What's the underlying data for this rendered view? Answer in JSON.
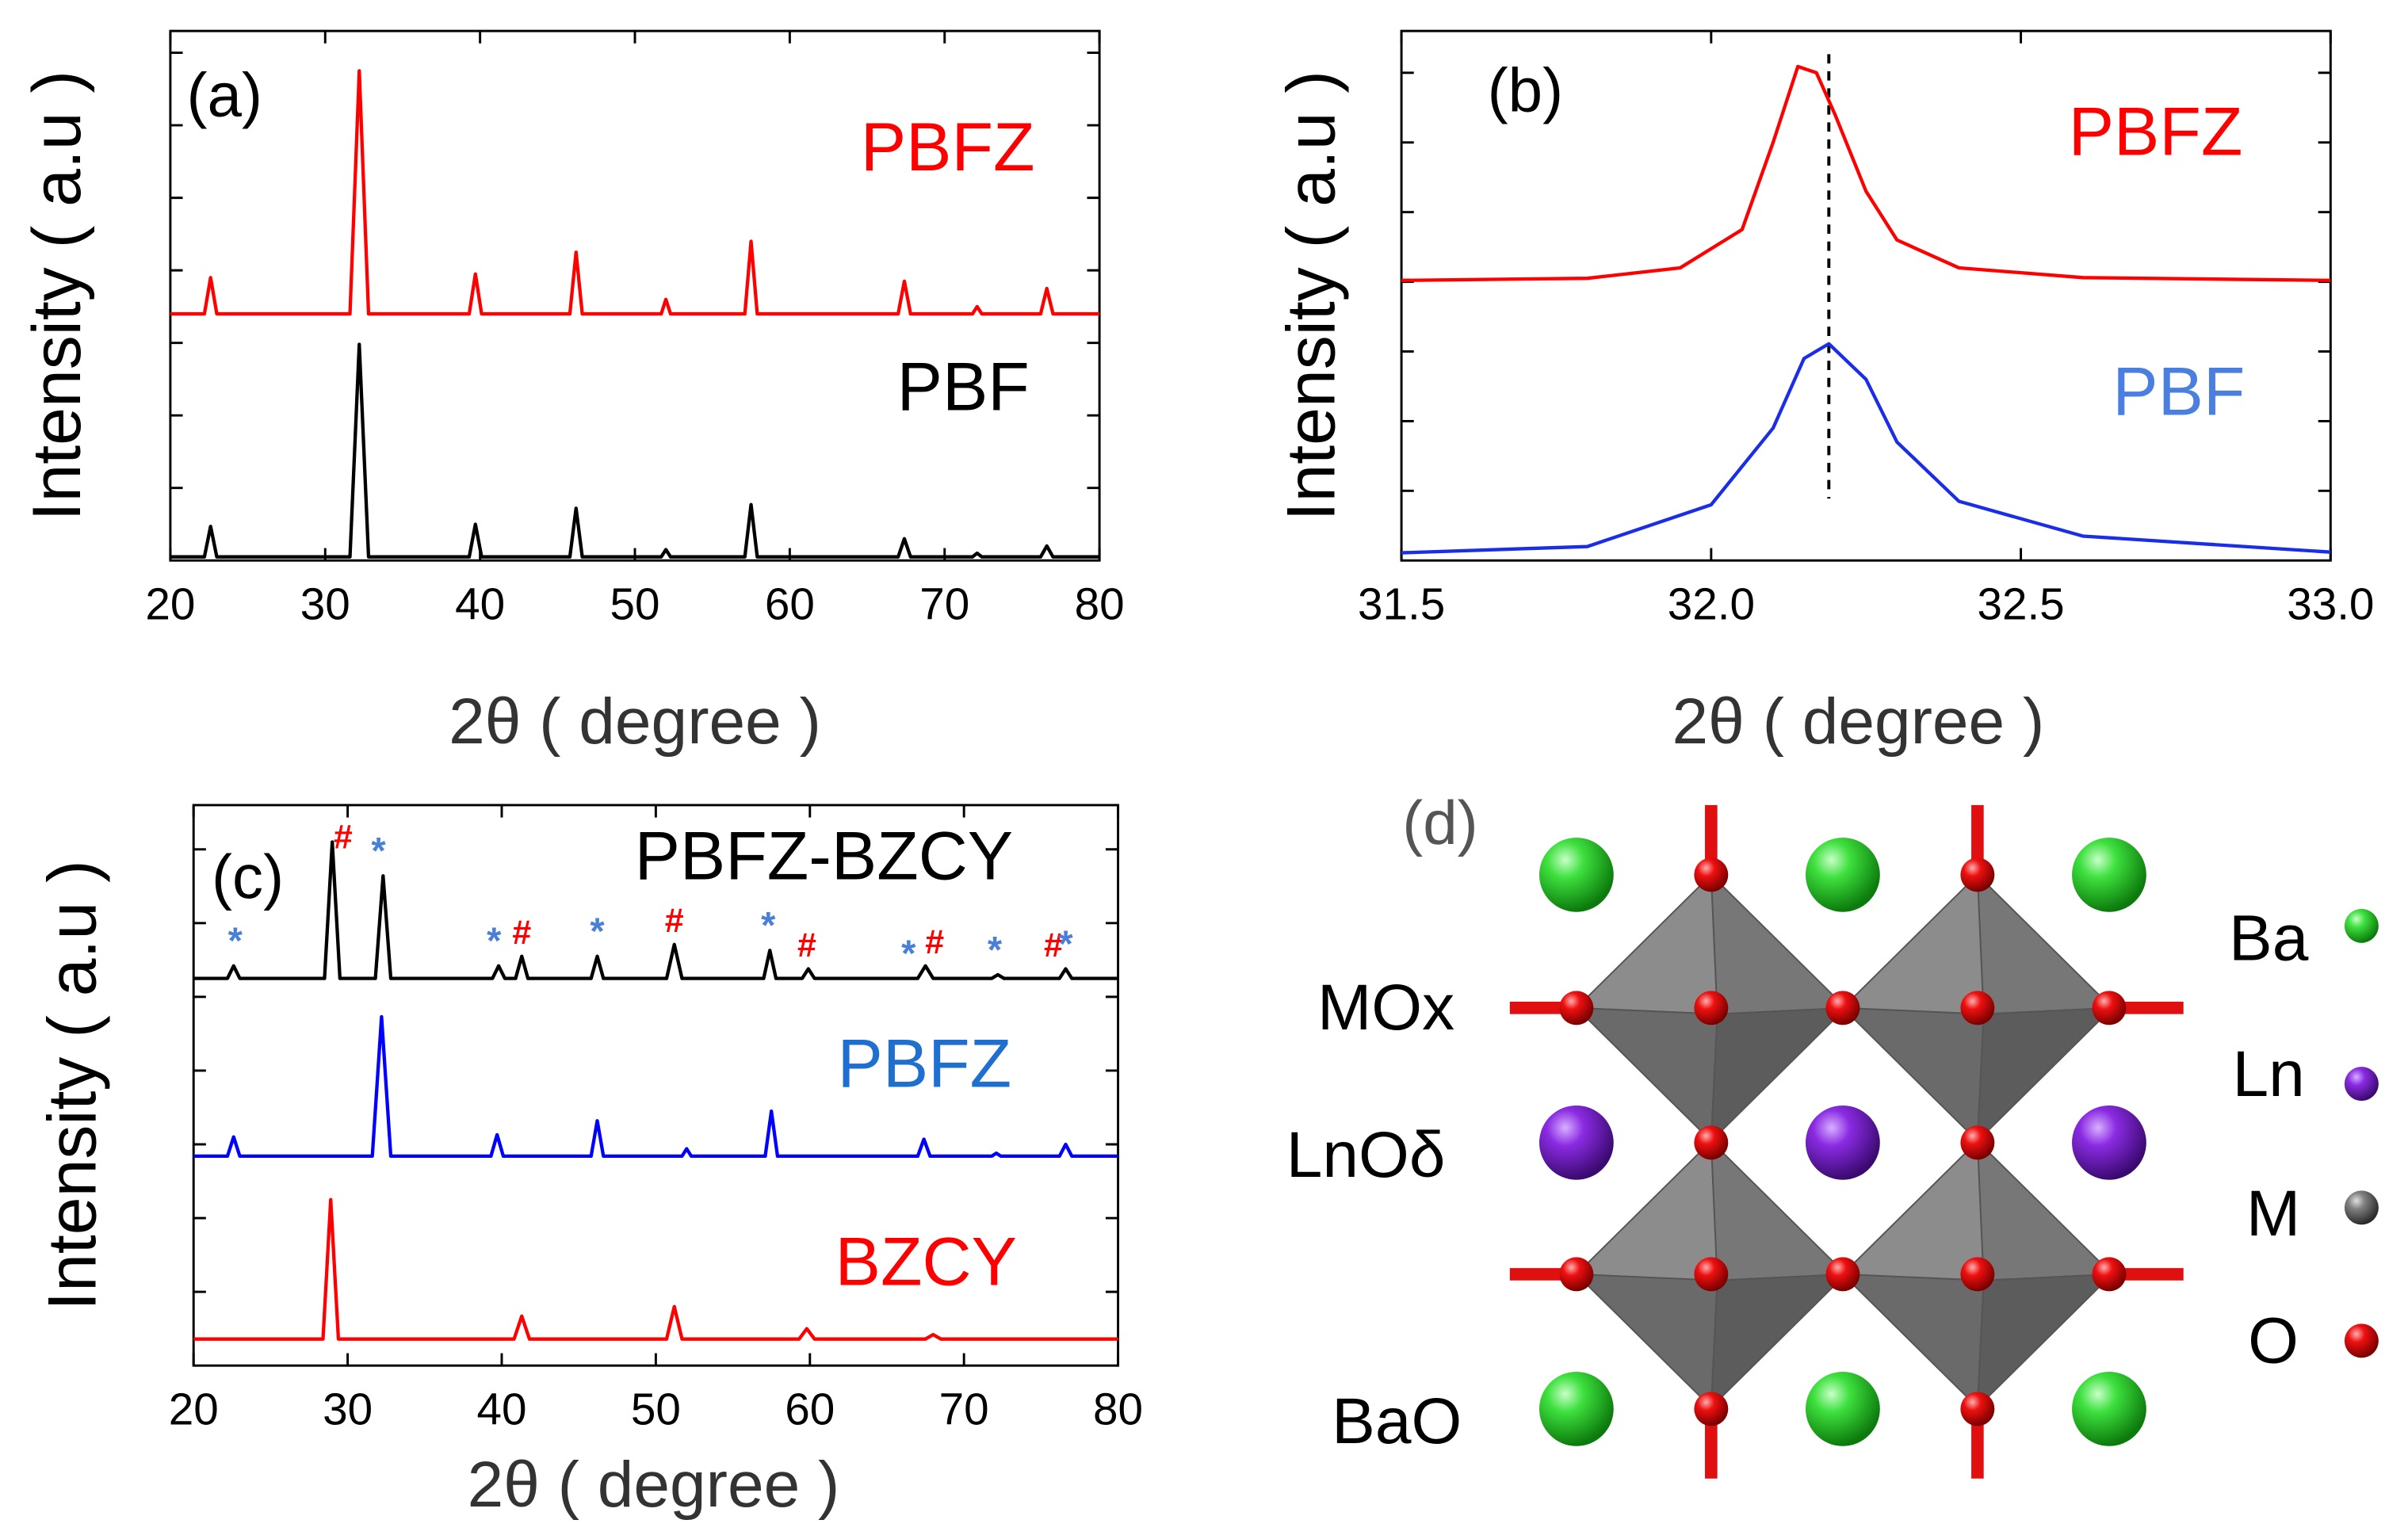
{
  "chart_data": [
    {
      "type": "line",
      "panel_label": "(a)",
      "xlabel": "2θ ( degree )",
      "ylabel": "Intensity ( a.u )",
      "xlim": [
        20,
        80
      ],
      "xticks": [
        20,
        30,
        40,
        50,
        60,
        70,
        80
      ],
      "ylim": [
        0,
        7.3
      ],
      "yticks": [
        1,
        2,
        3,
        4,
        5,
        6,
        7
      ],
      "series": [
        {
          "name": "PBFZ",
          "color": "#ff0000",
          "label_color": "#ff0000",
          "x": [
            20,
            22.2,
            22.6,
            23.0,
            31.6,
            32.2,
            32.8,
            39.3,
            39.7,
            40.1,
            45.8,
            46.2,
            46.6,
            51.7,
            52.0,
            52.3,
            57.1,
            57.5,
            57.9,
            67.0,
            67.4,
            67.8,
            71.8,
            72.1,
            72.4,
            76.2,
            76.6,
            77.0,
            80
          ],
          "values": [
            3.4,
            3.4,
            3.9,
            3.4,
            3.4,
            6.75,
            3.4,
            3.4,
            3.95,
            3.4,
            3.4,
            4.25,
            3.4,
            3.4,
            3.6,
            3.4,
            3.4,
            4.4,
            3.4,
            3.4,
            3.85,
            3.4,
            3.4,
            3.5,
            3.4,
            3.4,
            3.75,
            3.4,
            3.4
          ]
        },
        {
          "name": "PBF",
          "color": "#000000",
          "label_color": "#000000",
          "x": [
            20,
            22.2,
            22.6,
            23.0,
            31.6,
            32.2,
            32.8,
            39.3,
            39.7,
            40.1,
            45.8,
            46.2,
            46.6,
            51.7,
            52.0,
            52.3,
            57.1,
            57.5,
            57.9,
            67.0,
            67.4,
            67.8,
            71.8,
            72.1,
            72.4,
            76.2,
            76.6,
            77.0,
            80
          ],
          "values": [
            0.05,
            0.05,
            0.47,
            0.05,
            0.05,
            2.98,
            0.05,
            0.05,
            0.5,
            0.05,
            0.05,
            0.72,
            0.05,
            0.05,
            0.15,
            0.05,
            0.05,
            0.77,
            0.05,
            0.05,
            0.3,
            0.05,
            0.05,
            0.1,
            0.05,
            0.05,
            0.2,
            0.05,
            0.05
          ]
        }
      ]
    },
    {
      "type": "line",
      "panel_label": "(b)",
      "xlabel": "2θ ( degree )",
      "ylabel": "Intensity ( a.u )",
      "xlim": [
        31.5,
        33
      ],
      "xticks": [
        31.5,
        {
          "value": 32,
          "label": "32.0"
        },
        32.5,
        {
          "value": 33,
          "label": "33.0"
        }
      ],
      "ylim": [
        0,
        7.6
      ],
      "yticks": [
        1,
        2,
        3,
        4,
        5,
        6,
        7
      ],
      "reference_line": 32.19,
      "series": [
        {
          "name": "PBFZ",
          "color": "#ff0000",
          "label_color": "#ff0000",
          "x": [
            31.5,
            31.8,
            31.95,
            32.05,
            32.1,
            32.14,
            32.17,
            32.2,
            32.25,
            32.3,
            32.4,
            32.6,
            33.0
          ],
          "values": [
            4.02,
            4.05,
            4.2,
            4.75,
            6.0,
            7.09,
            7.0,
            6.4,
            5.3,
            4.6,
            4.2,
            4.06,
            4.02
          ]
        },
        {
          "name": "PBF",
          "color": "#1a2ee8",
          "label_color": "#4a7fe0",
          "x": [
            31.5,
            31.8,
            32.0,
            32.1,
            32.15,
            32.19,
            32.25,
            32.3,
            32.4,
            32.6,
            33.0
          ],
          "values": [
            0.11,
            0.2,
            0.8,
            1.9,
            2.9,
            3.11,
            2.6,
            1.7,
            0.85,
            0.35,
            0.12
          ]
        }
      ]
    },
    {
      "type": "line",
      "panel_label": "(c)",
      "xlabel": "2θ ( degree )",
      "ylabel": "Intensity ( a.u )",
      "xlim": [
        20,
        80
      ],
      "xticks": [
        20,
        30,
        40,
        50,
        60,
        70,
        80
      ],
      "ylim": [
        0,
        7.6
      ],
      "yticks": [
        1,
        2,
        3,
        4,
        5,
        6,
        7
      ],
      "series": [
        {
          "name": "PBFZ-BZCY",
          "color": "#000000",
          "label_color": "#000000",
          "x": [
            20,
            22.2,
            22.6,
            23.0,
            28.5,
            29.0,
            29.5,
            31.8,
            32.3,
            32.8,
            39.4,
            39.8,
            40.2,
            40.9,
            41.3,
            41.7,
            45.8,
            46.2,
            46.6,
            50.7,
            51.2,
            51.7,
            57.0,
            57.4,
            57.8,
            59.5,
            59.9,
            60.3,
            67.0,
            67.5,
            68.0,
            71.8,
            72.2,
            72.6,
            76.2,
            76.6,
            77.0,
            80
          ],
          "values": [
            5.25,
            5.25,
            5.42,
            5.25,
            5.25,
            7.1,
            5.25,
            5.25,
            6.64,
            5.25,
            5.25,
            5.42,
            5.25,
            5.25,
            5.55,
            5.25,
            5.25,
            5.55,
            5.25,
            5.25,
            5.71,
            5.25,
            5.25,
            5.63,
            5.25,
            5.25,
            5.38,
            5.25,
            5.25,
            5.42,
            5.25,
            5.25,
            5.3,
            5.25,
            5.25,
            5.38,
            5.25,
            5.25
          ]
        },
        {
          "name": "PBFZ",
          "color": "#0000ff",
          "label_color": "#1e6fd0",
          "x": [
            20,
            22.2,
            22.6,
            23.0,
            31.6,
            32.2,
            32.8,
            39.3,
            39.7,
            40.1,
            45.8,
            46.2,
            46.6,
            51.7,
            52.0,
            52.3,
            57.1,
            57.5,
            57.9,
            67.0,
            67.4,
            67.8,
            71.8,
            72.1,
            72.4,
            76.2,
            76.6,
            77.0,
            80
          ],
          "values": [
            2.84,
            2.84,
            3.1,
            2.84,
            2.84,
            4.73,
            2.84,
            2.84,
            3.13,
            2.84,
            2.84,
            3.32,
            2.84,
            2.84,
            2.94,
            2.84,
            2.84,
            3.45,
            2.84,
            2.84,
            3.07,
            2.84,
            2.84,
            2.88,
            2.84,
            2.84,
            3.0,
            2.84,
            2.84
          ]
        },
        {
          "name": "BZCY",
          "color": "#ff0000",
          "label_color": "#ff0000",
          "x": [
            20,
            28.4,
            28.9,
            29.4,
            40.8,
            41.3,
            41.8,
            50.7,
            51.2,
            51.7,
            59.3,
            59.8,
            60.3,
            67.5,
            68.0,
            68.5,
            80
          ],
          "values": [
            0.36,
            0.36,
            2.25,
            0.36,
            0.36,
            0.67,
            0.36,
            0.36,
            0.8,
            0.36,
            0.36,
            0.5,
            0.36,
            0.36,
            0.42,
            0.36,
            0.36
          ]
        }
      ],
      "annotations": [
        {
          "text": "*",
          "x": 22.7,
          "color": "#4a7fd8"
        },
        {
          "text": "#",
          "x": 29.7,
          "color": "#ff0000"
        },
        {
          "text": "*",
          "x": 32.0,
          "color": "#4a7fd8"
        },
        {
          "text": "*",
          "x": 39.5,
          "color": "#4a7fd8"
        },
        {
          "text": "#",
          "x": 41.3,
          "color": "#ff0000"
        },
        {
          "text": "*",
          "x": 46.2,
          "color": "#4a7fd8"
        },
        {
          "text": "#",
          "x": 51.2,
          "color": "#ff0000"
        },
        {
          "text": "*",
          "x": 57.3,
          "color": "#4a7fd8"
        },
        {
          "text": "#",
          "x": 59.8,
          "color": "#ff0000"
        },
        {
          "text": "*",
          "x": 66.4,
          "color": "#4a7fd8"
        },
        {
          "text": "#",
          "x": 68.1,
          "color": "#ff0000"
        },
        {
          "text": "*",
          "x": 72.0,
          "color": "#4a7fd8"
        },
        {
          "text": "#",
          "x": 75.8,
          "color": "#ff0000"
        },
        {
          "text": "*",
          "x": 76.6,
          "color": "#4a7fd8"
        }
      ]
    }
  ],
  "diagram": {
    "panel_label": "(d)",
    "layer_labels": [
      "MOx",
      "LnOδ",
      "BaO"
    ],
    "legend": [
      "Ba",
      "Ln",
      "M",
      "O"
    ]
  }
}
